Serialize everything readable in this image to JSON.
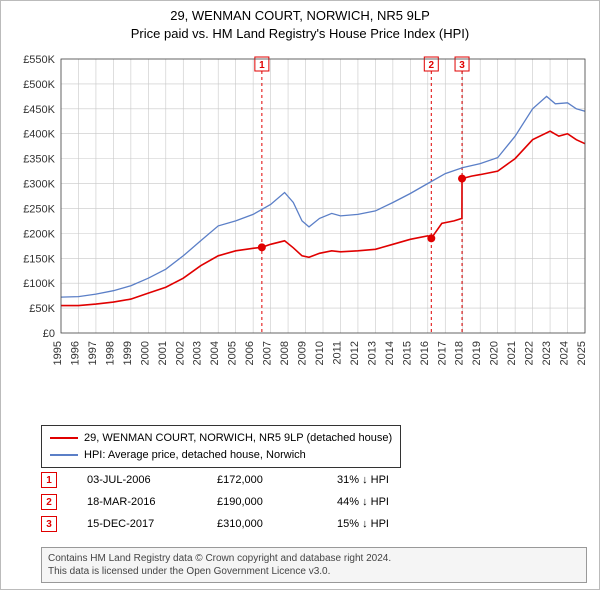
{
  "title": {
    "line1": "29, WENMAN COURT, NORWICH, NR5 9LP",
    "line2": "Price paid vs. HM Land Registry's House Price Index (HPI)",
    "fontsize": 13,
    "color": "#000000"
  },
  "chart": {
    "type": "line",
    "background_color": "#ffffff",
    "grid_color": "#c8c8c8",
    "axis_color": "#444444",
    "tick_font_size": 11,
    "tick_color": "#333333",
    "x": {
      "years": [
        1995,
        1996,
        1997,
        1998,
        1999,
        2000,
        2001,
        2002,
        2003,
        2004,
        2005,
        2006,
        2007,
        2008,
        2009,
        2010,
        2011,
        2012,
        2013,
        2014,
        2015,
        2016,
        2017,
        2018,
        2019,
        2020,
        2021,
        2022,
        2023,
        2024,
        2025
      ],
      "rotated": true
    },
    "y": {
      "min": 0,
      "max": 550000,
      "step": 50000,
      "labels": [
        "£0",
        "£50K",
        "£100K",
        "£150K",
        "£200K",
        "£250K",
        "£300K",
        "£350K",
        "£400K",
        "£450K",
        "£500K",
        "£550K"
      ]
    },
    "series": [
      {
        "name": "property",
        "label": "29, WENMAN COURT, NORWICH, NR5 9LP (detached house)",
        "color": "#e00000",
        "line_width": 1.6,
        "points": [
          [
            1995.0,
            55000
          ],
          [
            1996.0,
            55000
          ],
          [
            1997.0,
            58000
          ],
          [
            1998.0,
            62000
          ],
          [
            1999.0,
            68000
          ],
          [
            2000.0,
            80000
          ],
          [
            2001.0,
            92000
          ],
          [
            2002.0,
            110000
          ],
          [
            2003.0,
            135000
          ],
          [
            2004.0,
            155000
          ],
          [
            2005.0,
            165000
          ],
          [
            2006.0,
            170000
          ],
          [
            2006.5,
            172000
          ],
          [
            2007.0,
            178000
          ],
          [
            2007.8,
            185000
          ],
          [
            2008.3,
            171000
          ],
          [
            2008.8,
            155000
          ],
          [
            2009.2,
            152000
          ],
          [
            2009.8,
            160000
          ],
          [
            2010.5,
            165000
          ],
          [
            2011.0,
            163000
          ],
          [
            2012.0,
            165000
          ],
          [
            2013.0,
            168000
          ],
          [
            2014.0,
            178000
          ],
          [
            2015.0,
            188000
          ],
          [
            2016.0,
            195000
          ],
          [
            2016.2,
            190000
          ],
          [
            2016.8,
            220000
          ],
          [
            2017.5,
            225000
          ],
          [
            2017.95,
            230000
          ],
          [
            2017.96,
            310000
          ],
          [
            2018.5,
            315000
          ],
          [
            2019.0,
            318000
          ],
          [
            2020.0,
            325000
          ],
          [
            2021.0,
            350000
          ],
          [
            2022.0,
            388000
          ],
          [
            2023.0,
            405000
          ],
          [
            2023.5,
            395000
          ],
          [
            2024.0,
            400000
          ],
          [
            2024.5,
            388000
          ],
          [
            2025.0,
            380000
          ]
        ],
        "sale_markers": [
          {
            "x": 2006.5,
            "y": 172000
          },
          {
            "x": 2016.2,
            "y": 190000
          },
          {
            "x": 2017.96,
            "y": 310000
          }
        ]
      },
      {
        "name": "hpi",
        "label": "HPI: Average price, detached house, Norwich",
        "color": "#5b7fc7",
        "line_width": 1.3,
        "points": [
          [
            1995.0,
            72000
          ],
          [
            1996.0,
            73000
          ],
          [
            1997.0,
            78000
          ],
          [
            1998.0,
            85000
          ],
          [
            1999.0,
            95000
          ],
          [
            2000.0,
            110000
          ],
          [
            2001.0,
            128000
          ],
          [
            2002.0,
            155000
          ],
          [
            2003.0,
            185000
          ],
          [
            2004.0,
            215000
          ],
          [
            2005.0,
            225000
          ],
          [
            2006.0,
            238000
          ],
          [
            2007.0,
            258000
          ],
          [
            2007.8,
            282000
          ],
          [
            2008.3,
            262000
          ],
          [
            2008.8,
            225000
          ],
          [
            2009.2,
            213000
          ],
          [
            2009.8,
            230000
          ],
          [
            2010.5,
            240000
          ],
          [
            2011.0,
            235000
          ],
          [
            2012.0,
            238000
          ],
          [
            2013.0,
            245000
          ],
          [
            2014.0,
            262000
          ],
          [
            2015.0,
            280000
          ],
          [
            2016.0,
            300000
          ],
          [
            2017.0,
            320000
          ],
          [
            2018.0,
            332000
          ],
          [
            2019.0,
            340000
          ],
          [
            2020.0,
            352000
          ],
          [
            2021.0,
            395000
          ],
          [
            2022.0,
            450000
          ],
          [
            2022.8,
            475000
          ],
          [
            2023.3,
            460000
          ],
          [
            2024.0,
            462000
          ],
          [
            2024.5,
            450000
          ],
          [
            2025.0,
            445000
          ]
        ]
      }
    ],
    "event_lines": [
      {
        "x": 2006.5,
        "label": "1",
        "color": "#e00000"
      },
      {
        "x": 2016.2,
        "label": "2",
        "color": "#e00000"
      },
      {
        "x": 2017.96,
        "label": "3",
        "color": "#e00000"
      }
    ],
    "event_dash": "3,3",
    "event_label_box_color": "#e00000"
  },
  "legend": {
    "border_color": "#333333",
    "font_size": 11
  },
  "sales": [
    {
      "n": "1",
      "date": "03-JUL-2006",
      "price": "£172,000",
      "delta": "31% ↓ HPI"
    },
    {
      "n": "2",
      "date": "18-MAR-2016",
      "price": "£190,000",
      "delta": "44% ↓ HPI"
    },
    {
      "n": "3",
      "date": "15-DEC-2017",
      "price": "£310,000",
      "delta": "15% ↓ HPI"
    }
  ],
  "footer": {
    "line1": "Contains HM Land Registry data © Crown copyright and database right 2024.",
    "line2": "This data is licensed under the Open Government Licence v3.0.",
    "bg": "#f5f5f5",
    "border": "#999999",
    "text_color": "#444444"
  }
}
